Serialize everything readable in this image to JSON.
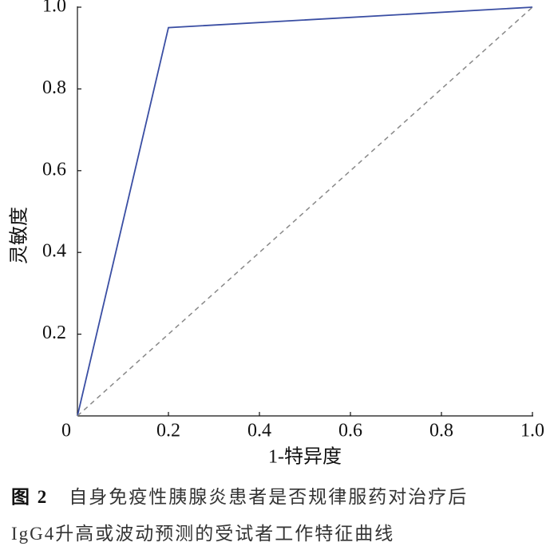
{
  "chart_data": {
    "type": "line",
    "x_label": "1-特异度",
    "y_label": "灵敏度",
    "series": [
      {
        "color": "#3a4ea3",
        "x": [
          0,
          0.2,
          1
        ],
        "values": [
          0,
          0.95,
          1
        ]
      },
      {
        "color": "#888888",
        "dashed": true,
        "x": [
          0,
          1
        ],
        "values": [
          0,
          1
        ]
      }
    ],
    "xlim": [
      0,
      1
    ],
    "ylim": [
      0,
      1
    ],
    "xticks": [
      0,
      0.2,
      0.4,
      0.6,
      0.8,
      {
        "value": 1,
        "label": "1.0"
      }
    ],
    "yticks": [
      0.2,
      0.4,
      0.6,
      0.8,
      {
        "value": 1,
        "label": "1.0"
      }
    ],
    "grid": false
  },
  "caption": {
    "label": "图 2",
    "lines": [
      "自身免疫性胰腺炎患者是否规律服药对治疗后",
      "IgG4升高或波动预测的受试者工作特征曲线"
    ]
  }
}
